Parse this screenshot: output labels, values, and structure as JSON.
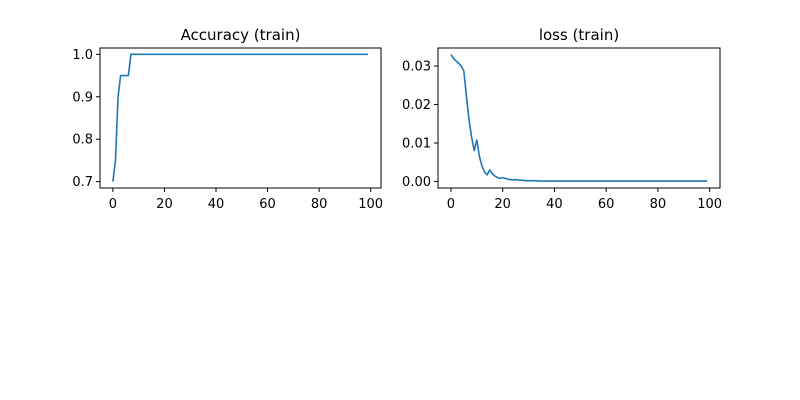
{
  "chart_data": [
    {
      "type": "line",
      "title": "Accuracy (train)",
      "xlabel": "",
      "ylabel": "",
      "xlim": [
        -5,
        104
      ],
      "ylim": [
        0.685,
        1.015
      ],
      "xticks": [
        0,
        20,
        40,
        60,
        80,
        100
      ],
      "xtick_labels": [
        "0",
        "20",
        "40",
        "60",
        "80",
        "100"
      ],
      "yticks": [
        0.7,
        0.8,
        0.9,
        1.0
      ],
      "ytick_labels": [
        "0.7",
        "0.8",
        "0.9",
        "1.0"
      ],
      "grid": false,
      "legend": "none",
      "series": [
        {
          "color": "#1f77b4",
          "x": [
            0,
            1,
            2,
            3,
            4,
            5,
            6,
            7,
            99
          ],
          "y": [
            0.7,
            0.75,
            0.9,
            0.95,
            0.95,
            0.95,
            0.95,
            1.0,
            1.0
          ]
        }
      ]
    },
    {
      "type": "line",
      "title": "loss (train)",
      "xlabel": "",
      "ylabel": "",
      "xlim": [
        -5,
        104
      ],
      "ylim": [
        -0.0017,
        0.0347
      ],
      "xticks": [
        0,
        20,
        40,
        60,
        80,
        100
      ],
      "xtick_labels": [
        "0",
        "20",
        "40",
        "60",
        "80",
        "100"
      ],
      "yticks": [
        0.0,
        0.01,
        0.02,
        0.03
      ],
      "ytick_labels": [
        "0.00",
        "0.01",
        "0.02",
        "0.03"
      ],
      "grid": false,
      "legend": "none",
      "series": [
        {
          "color": "#1f77b4",
          "x": [
            0,
            1,
            2,
            3,
            4,
            5,
            6,
            7,
            8,
            9,
            10,
            11,
            12,
            13,
            14,
            15,
            16,
            17,
            18,
            19,
            20,
            21,
            22,
            23,
            24,
            25,
            26,
            27,
            28,
            29,
            30,
            32,
            35,
            40,
            50,
            60,
            70,
            80,
            99
          ],
          "y": [
            0.033,
            0.032,
            0.0313,
            0.0307,
            0.03,
            0.0287,
            0.022,
            0.016,
            0.0115,
            0.008,
            0.0108,
            0.0065,
            0.004,
            0.0025,
            0.0017,
            0.003,
            0.002,
            0.0014,
            0.001,
            0.0008,
            0.001,
            0.0008,
            0.0006,
            0.0005,
            0.0004,
            0.0005,
            0.0004,
            0.0003,
            0.0003,
            0.0002,
            0.0002,
            0.0002,
            0.0001,
            0.0001,
            0.0001,
            0.0001,
            0.0001,
            0.0001,
            0.0001
          ]
        }
      ]
    }
  ]
}
